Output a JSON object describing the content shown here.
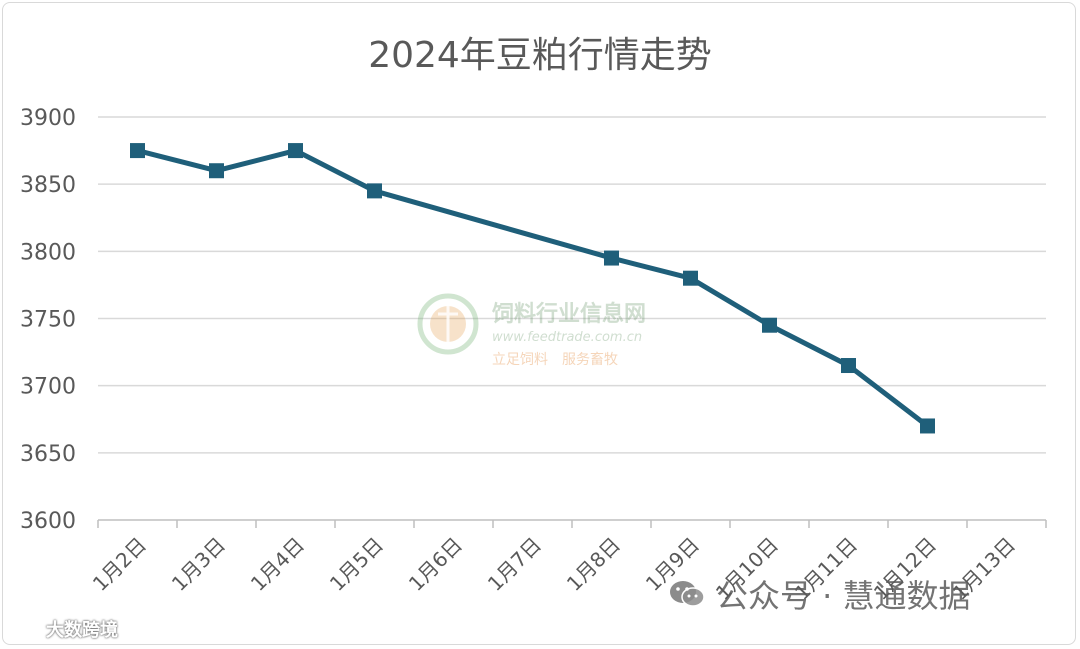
{
  "chart_data": {
    "type": "line",
    "title": "2024年豆粕行情走势",
    "categories": [
      "1月2日",
      "1月3日",
      "1月4日",
      "1月5日",
      "1月6日",
      "1月7日",
      "1月8日",
      "1月9日",
      "1月10日",
      "1月11日",
      "1月12日",
      "1月13日"
    ],
    "series": [
      {
        "values": [
          3875,
          3860,
          3875,
          3845,
          null,
          null,
          3795,
          3780,
          3745,
          3715,
          3670,
          null
        ]
      }
    ],
    "ylim": [
      3600,
      3900
    ],
    "yticks": [
      3600,
      3650,
      3700,
      3750,
      3800,
      3850,
      3900
    ],
    "grid": true,
    "colors": {
      "line": "#1f5f7a",
      "grid": "#d9d9d9",
      "text": "#595959"
    },
    "marker": "square"
  },
  "watermark": {
    "site_name": "饲料行业信息网",
    "url": "www.feedtrade.com.cn",
    "slogan": "立足饲料　服务畜牧",
    "wechat": "公众号 · 慧通数据",
    "corner": "大数跨境",
    "icons": [
      "feedtrade-logo-icon",
      "wechat-icon",
      "bilibili-icon"
    ]
  }
}
